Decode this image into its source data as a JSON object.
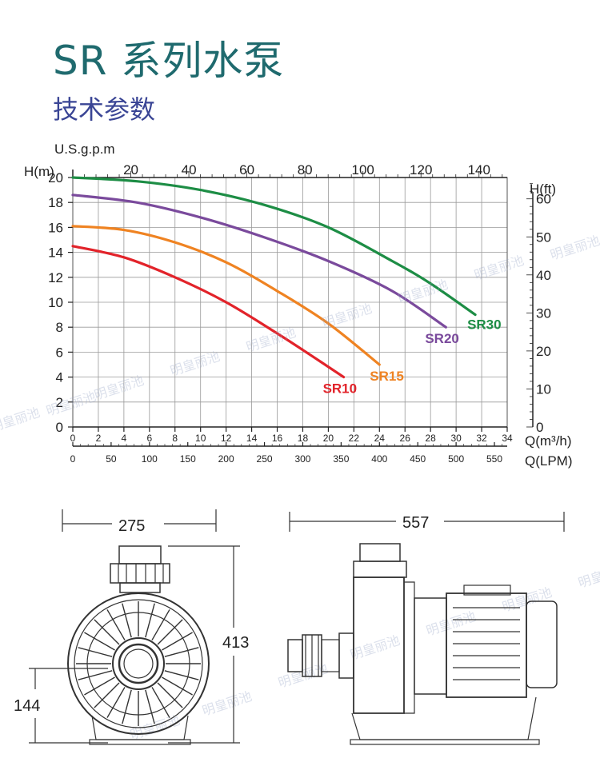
{
  "title": "SR 系列水泵",
  "subtitle": "技术参数",
  "watermark": "明皇丽池",
  "chart_data": {
    "type": "line",
    "title": "",
    "xlabel": "Q(m³/h)",
    "xlabel_lpm": "Q(LPM)",
    "xlabel_gpm": "U.S.g.p.m",
    "ylabel": "H(m)",
    "ylabel_right": "H(ft)",
    "xlim": [
      0,
      34
    ],
    "ylim": [
      0,
      20
    ],
    "x_ticks": [
      0,
      2,
      4,
      6,
      8,
      10,
      12,
      14,
      16,
      18,
      20,
      22,
      24,
      26,
      28,
      30,
      32,
      34
    ],
    "y_ticks": [
      0,
      2,
      4,
      6,
      8,
      10,
      12,
      14,
      16,
      18,
      20
    ],
    "lpm_ticks": [
      0,
      50,
      100,
      150,
      200,
      250,
      300,
      350,
      400,
      450,
      500,
      550
    ],
    "gpm_ticks": [
      20,
      40,
      60,
      80,
      100,
      120,
      140
    ],
    "ft_ticks": [
      0,
      10,
      20,
      30,
      40,
      50,
      60
    ],
    "grid": true,
    "series": [
      {
        "name": "SR10",
        "color": "#e2232a",
        "x": [
          0,
          4,
          8,
          12,
          16,
          19,
          21.2
        ],
        "y": [
          14.5,
          13.6,
          12.0,
          10.0,
          7.5,
          5.5,
          4.0
        ]
      },
      {
        "name": "SR15",
        "color": "#ef8322",
        "x": [
          0,
          4,
          8,
          12,
          16,
          20,
          24
        ],
        "y": [
          16.1,
          15.8,
          14.8,
          13.2,
          10.9,
          8.3,
          5.0
        ]
      },
      {
        "name": "SR20",
        "color": "#7a4a9c",
        "x": [
          0,
          5,
          10,
          15,
          20,
          25,
          29.2
        ],
        "y": [
          18.6,
          18.0,
          16.8,
          15.2,
          13.3,
          10.9,
          8.0
        ]
      },
      {
        "name": "SR30",
        "color": "#1d8d45",
        "x": [
          0,
          5,
          10,
          15,
          20,
          25,
          28,
          31.5
        ],
        "y": [
          20.0,
          19.7,
          19.0,
          17.8,
          16.0,
          13.3,
          11.5,
          9.0
        ]
      }
    ]
  },
  "dimensions": {
    "front_width": "275",
    "height": "413",
    "axis_height": "144",
    "side_length": "557"
  }
}
